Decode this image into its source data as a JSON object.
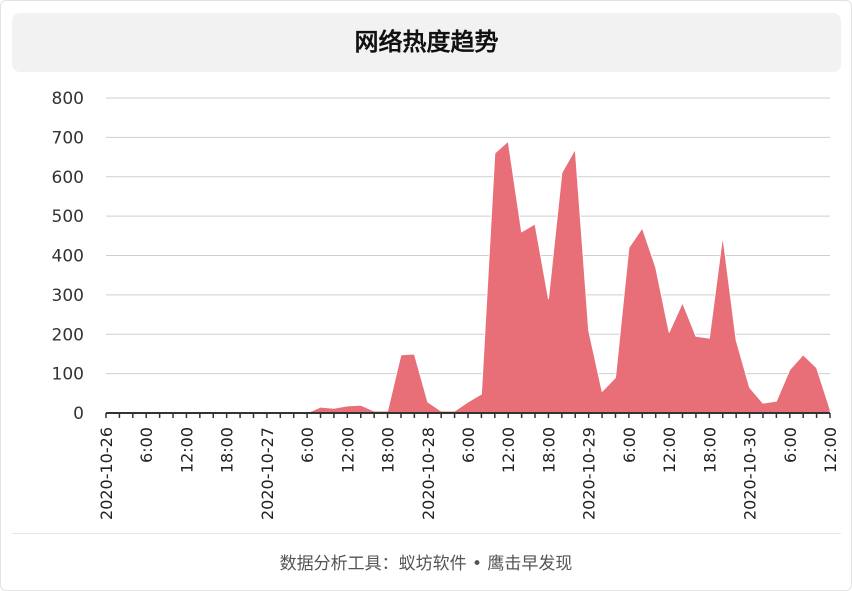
{
  "title": "网络热度趋势",
  "footer": "数据分析工具：蚁坊软件 • 鹰击早发现",
  "colors": {
    "area": "#e86f78",
    "grid": "#cfcfcf",
    "axis": "#333333"
  },
  "chart_data": {
    "type": "area",
    "title": "网络热度趋势",
    "xlabel": "",
    "ylabel": "",
    "ylim": [
      0,
      800
    ],
    "yticks": [
      0,
      100,
      200,
      300,
      400,
      500,
      600,
      700,
      800
    ],
    "x_tick_labels": [
      "2020-10-26",
      "6:00",
      "12:00",
      "18:00",
      "2020-10-27",
      "6:00",
      "12:00",
      "18:00",
      "2020-10-28",
      "6:00",
      "12:00",
      "18:00",
      "2020-10-29",
      "6:00",
      "12:00",
      "18:00",
      "2020-10-30",
      "6:00",
      "12:00"
    ],
    "x_start": "2020-10-26 00:00",
    "x_end": "2020-10-30 12:00",
    "interval_hours": 2,
    "grid": true,
    "series": [
      {
        "values": [
          0,
          0,
          0,
          0,
          0,
          0,
          0,
          0,
          0,
          0,
          0,
          0,
          0,
          0,
          0,
          0,
          15,
          12,
          18,
          20,
          5,
          5,
          148,
          150,
          28,
          5,
          5,
          28,
          48,
          660,
          690,
          460,
          480,
          290,
          610,
          670,
          210,
          55,
          90,
          420,
          470,
          370,
          205,
          280,
          195,
          190,
          450,
          185,
          65,
          25,
          30,
          110,
          148,
          115,
          10
        ]
      }
    ]
  }
}
